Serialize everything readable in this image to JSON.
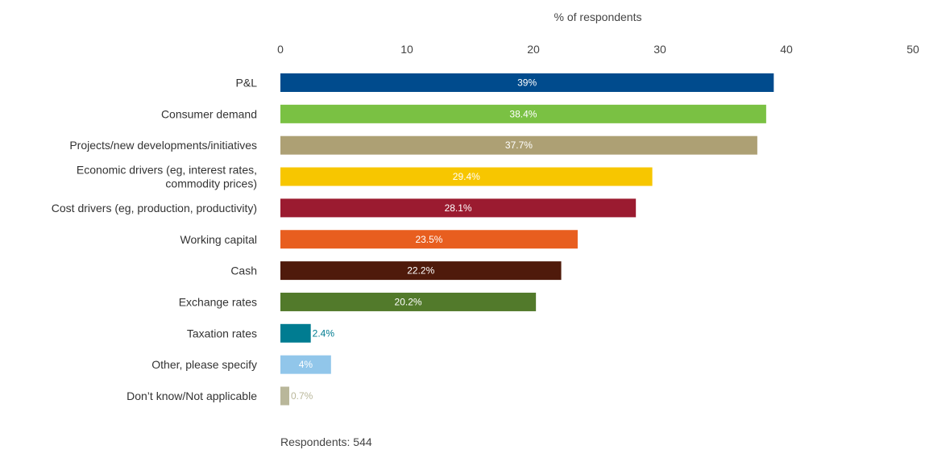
{
  "chart_data": {
    "type": "bar",
    "orientation": "horizontal",
    "xlabel": "% of respondents",
    "xlim": [
      0,
      50
    ],
    "xticks": [
      0,
      10,
      20,
      30,
      40,
      50
    ],
    "grid": false,
    "legend": "none",
    "bars": [
      {
        "category": [
          "P&L"
        ],
        "value": 39,
        "label": "39%",
        "color": "#004b8d",
        "label_inside": true
      },
      {
        "category": [
          "Consumer demand"
        ],
        "value": 38.4,
        "label": "38.4%",
        "color": "#7ac143",
        "label_inside": true
      },
      {
        "category": [
          "Projects/new developments/initiatives"
        ],
        "value": 37.7,
        "label": "37.7%",
        "color": "#ada074",
        "label_inside": true
      },
      {
        "category": [
          "Economic drivers (eg, interest rates,",
          "commodity prices)"
        ],
        "value": 29.4,
        "label": "29.4%",
        "color": "#f7c600",
        "label_inside": true
      },
      {
        "category": [
          "Cost drivers (eg, production, productivity)"
        ],
        "value": 28.1,
        "label": "28.1%",
        "color": "#9b1b30",
        "label_inside": true
      },
      {
        "category": [
          "Working capital"
        ],
        "value": 23.5,
        "label": "23.5%",
        "color": "#e85e1f",
        "label_inside": true
      },
      {
        "category": [
          "Cash"
        ],
        "value": 22.2,
        "label": "22.2%",
        "color": "#4f1a0b",
        "label_inside": true
      },
      {
        "category": [
          "Exchange rates"
        ],
        "value": 20.2,
        "label": "20.2%",
        "color": "#527a2b",
        "label_inside": true
      },
      {
        "category": [
          "Taxation rates"
        ],
        "value": 2.4,
        "label": "2.4%",
        "color": "#007c91",
        "label_inside": false
      },
      {
        "category": [
          "Other, please specify"
        ],
        "value": 4,
        "label": "4%",
        "color": "#91c6ea",
        "label_inside": true
      },
      {
        "category": [
          "Don’t know/Not applicable"
        ],
        "value": 0.7,
        "label": "0.7%",
        "color": "#b9b79a",
        "label_inside": false
      }
    ]
  },
  "footnote": "Respondents: 544"
}
